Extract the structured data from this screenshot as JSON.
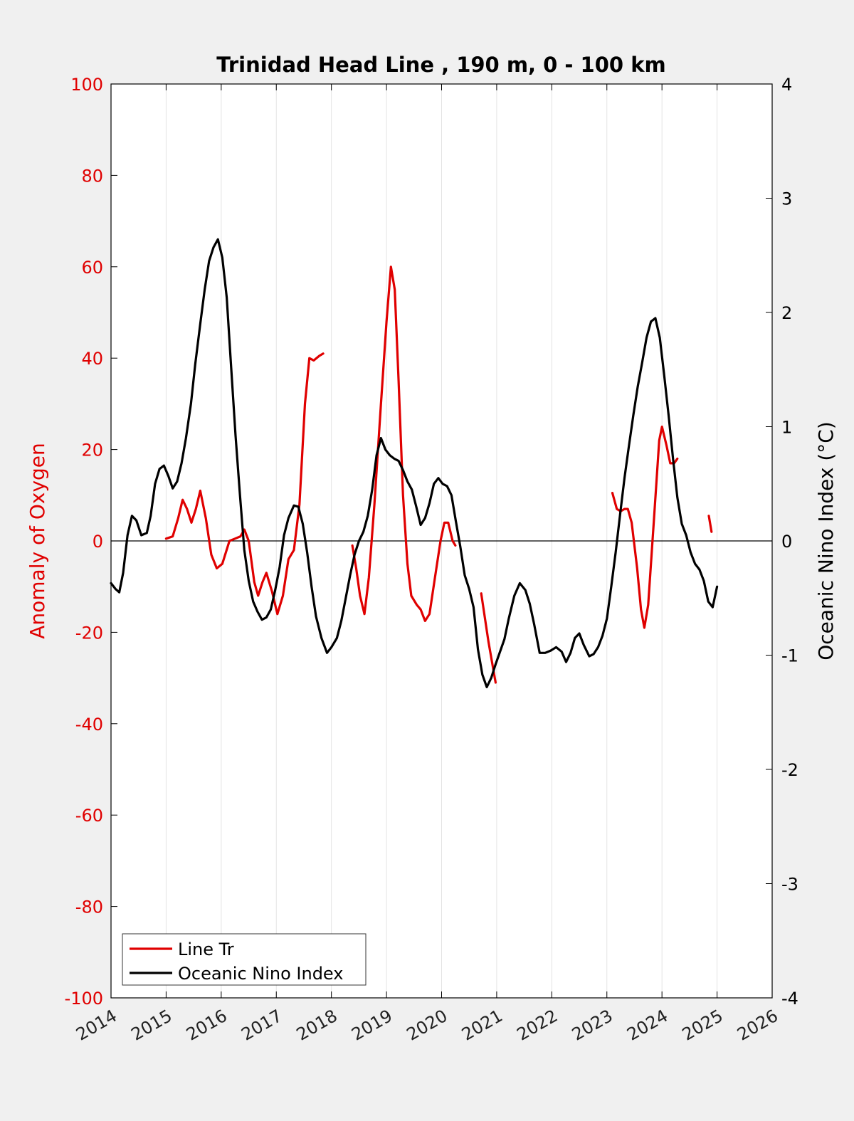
{
  "chart_data": {
    "type": "line",
    "title": "Trinidad Head Line , 190 m, 0 - 100 km",
    "ylabel_left": "Anomaly of Oxygen",
    "ylabel_right": "Oceanic Nino Index (°C)",
    "xlim": [
      2014,
      2026
    ],
    "ylim_left": [
      -100,
      100
    ],
    "ylim_right": [
      -4,
      4
    ],
    "x_ticks": [
      "2014",
      "2015",
      "2016",
      "2017",
      "2018",
      "2019",
      "2020",
      "2021",
      "2022",
      "2023",
      "2024",
      "2025",
      "2026"
    ],
    "y_left_ticks": [
      "100",
      "80",
      "60",
      "40",
      "20",
      "0",
      "-20",
      "-40",
      "-60",
      "-80",
      "-100"
    ],
    "y_right_ticks": [
      "4",
      "3",
      "2",
      "1",
      "0",
      "-1",
      "-2",
      "-3",
      "-4"
    ],
    "grid": "vertical",
    "legend_position": "bottom-left",
    "colors": {
      "line_tr": "#e00000",
      "oni": "#000000",
      "zero_line": "#000000"
    },
    "series": [
      {
        "name": "Line Tr",
        "axis": "left",
        "color": "#e00000",
        "segments": [
          [
            [
              2015.0,
              0.5
            ],
            [
              2015.12,
              1
            ],
            [
              2015.22,
              5
            ],
            [
              2015.3,
              9
            ],
            [
              2015.38,
              7
            ],
            [
              2015.46,
              4
            ],
            [
              2015.54,
              7
            ],
            [
              2015.62,
              11
            ],
            [
              2015.72,
              5
            ],
            [
              2015.82,
              -3
            ],
            [
              2015.92,
              -6
            ],
            [
              2016.02,
              -5
            ],
            [
              2016.15,
              0
            ],
            [
              2016.25,
              0.5
            ],
            [
              2016.35,
              1
            ],
            [
              2016.42,
              2.5
            ],
            [
              2016.5,
              0
            ],
            [
              2016.6,
              -9
            ],
            [
              2016.67,
              -12
            ],
            [
              2016.75,
              -9
            ],
            [
              2016.82,
              -7
            ],
            [
              2016.92,
              -11
            ],
            [
              2017.02,
              -16
            ],
            [
              2017.12,
              -12
            ],
            [
              2017.22,
              -4
            ],
            [
              2017.32,
              -2
            ],
            [
              2017.42,
              8
            ],
            [
              2017.52,
              30
            ],
            [
              2017.6,
              40
            ],
            [
              2017.68,
              39.5
            ],
            [
              2017.78,
              40.5
            ],
            [
              2017.85,
              41
            ]
          ],
          [
            [
              2018.38,
              -1
            ],
            [
              2018.45,
              -6
            ],
            [
              2018.52,
              -12
            ],
            [
              2018.6,
              -16
            ],
            [
              2018.68,
              -8
            ],
            [
              2018.78,
              8
            ],
            [
              2018.9,
              30
            ],
            [
              2019.0,
              48
            ],
            [
              2019.08,
              60
            ],
            [
              2019.15,
              55
            ],
            [
              2019.22,
              35
            ],
            [
              2019.3,
              10
            ],
            [
              2019.38,
              -5
            ],
            [
              2019.45,
              -12
            ],
            [
              2019.55,
              -14
            ],
            [
              2019.62,
              -15
            ],
            [
              2019.7,
              -17.5
            ],
            [
              2019.78,
              -16
            ],
            [
              2019.88,
              -8
            ],
            [
              2019.98,
              0
            ],
            [
              2020.05,
              4
            ],
            [
              2020.12,
              4
            ],
            [
              2020.2,
              0
            ],
            [
              2020.25,
              -1
            ]
          ],
          [
            [
              2020.72,
              -11.5
            ],
            [
              2020.85,
              -22
            ],
            [
              2020.98,
              -31
            ]
          ],
          [
            [
              2023.1,
              10.5
            ],
            [
              2023.18,
              7
            ],
            [
              2023.25,
              6.5
            ],
            [
              2023.32,
              7
            ],
            [
              2023.38,
              7
            ],
            [
              2023.45,
              4
            ],
            [
              2023.55,
              -6
            ],
            [
              2023.62,
              -15
            ],
            [
              2023.68,
              -19
            ],
            [
              2023.75,
              -14
            ],
            [
              2023.85,
              4
            ],
            [
              2023.95,
              22
            ],
            [
              2024.0,
              25
            ],
            [
              2024.08,
              21
            ],
            [
              2024.15,
              17
            ],
            [
              2024.22,
              17
            ],
            [
              2024.28,
              18
            ]
          ],
          [
            [
              2024.85,
              5.5
            ],
            [
              2024.9,
              2
            ]
          ]
        ]
      },
      {
        "name": "Oceanic Nino Index",
        "axis": "right",
        "color": "#000000",
        "segments": [
          [
            [
              2014.0,
              -0.37
            ],
            [
              2014.08,
              -0.42
            ],
            [
              2014.15,
              -0.45
            ],
            [
              2014.22,
              -0.28
            ],
            [
              2014.3,
              0.05
            ],
            [
              2014.38,
              0.22
            ],
            [
              2014.46,
              0.18
            ],
            [
              2014.55,
              0.05
            ],
            [
              2014.65,
              0.07
            ],
            [
              2014.72,
              0.22
            ],
            [
              2014.8,
              0.5
            ],
            [
              2014.88,
              0.63
            ],
            [
              2014.96,
              0.66
            ],
            [
              2015.04,
              0.57
            ],
            [
              2015.12,
              0.46
            ],
            [
              2015.2,
              0.52
            ],
            [
              2015.28,
              0.68
            ],
            [
              2015.36,
              0.9
            ],
            [
              2015.45,
              1.2
            ],
            [
              2015.53,
              1.55
            ],
            [
              2015.62,
              1.9
            ],
            [
              2015.7,
              2.2
            ],
            [
              2015.78,
              2.45
            ],
            [
              2015.86,
              2.57
            ],
            [
              2015.94,
              2.64
            ],
            [
              2016.02,
              2.48
            ],
            [
              2016.1,
              2.13
            ],
            [
              2016.18,
              1.52
            ],
            [
              2016.26,
              0.92
            ],
            [
              2016.34,
              0.4
            ],
            [
              2016.42,
              -0.08
            ],
            [
              2016.5,
              -0.35
            ],
            [
              2016.58,
              -0.53
            ],
            [
              2016.66,
              -0.62
            ],
            [
              2016.74,
              -0.69
            ],
            [
              2016.82,
              -0.67
            ],
            [
              2016.9,
              -0.6
            ],
            [
              2016.98,
              -0.43
            ],
            [
              2017.06,
              -0.23
            ],
            [
              2017.14,
              0.05
            ],
            [
              2017.22,
              0.2
            ],
            [
              2017.32,
              0.31
            ],
            [
              2017.4,
              0.3
            ],
            [
              2017.48,
              0.15
            ],
            [
              2017.56,
              -0.1
            ],
            [
              2017.64,
              -0.4
            ],
            [
              2017.72,
              -0.66
            ],
            [
              2017.82,
              -0.85
            ],
            [
              2017.92,
              -0.98
            ],
            [
              2018.0,
              -0.93
            ],
            [
              2018.1,
              -0.85
            ],
            [
              2018.18,
              -0.7
            ],
            [
              2018.26,
              -0.5
            ],
            [
              2018.34,
              -0.3
            ],
            [
              2018.42,
              -0.12
            ],
            [
              2018.5,
              0.0
            ],
            [
              2018.58,
              0.08
            ],
            [
              2018.66,
              0.22
            ],
            [
              2018.74,
              0.45
            ],
            [
              2018.82,
              0.75
            ],
            [
              2018.9,
              0.9
            ],
            [
              2018.98,
              0.8
            ],
            [
              2019.06,
              0.75
            ],
            [
              2019.14,
              0.72
            ],
            [
              2019.22,
              0.7
            ],
            [
              2019.3,
              0.62
            ],
            [
              2019.38,
              0.52
            ],
            [
              2019.46,
              0.45
            ],
            [
              2019.54,
              0.3
            ],
            [
              2019.62,
              0.14
            ],
            [
              2019.7,
              0.2
            ],
            [
              2019.78,
              0.33
            ],
            [
              2019.86,
              0.5
            ],
            [
              2019.94,
              0.55
            ],
            [
              2020.02,
              0.5
            ],
            [
              2020.1,
              0.48
            ],
            [
              2020.18,
              0.4
            ],
            [
              2020.26,
              0.17
            ],
            [
              2020.34,
              -0.05
            ],
            [
              2020.42,
              -0.3
            ],
            [
              2020.5,
              -0.42
            ],
            [
              2020.58,
              -0.58
            ],
            [
              2020.66,
              -0.95
            ],
            [
              2020.74,
              -1.17
            ],
            [
              2020.82,
              -1.28
            ],
            [
              2020.9,
              -1.2
            ],
            [
              2020.98,
              -1.08
            ],
            [
              2021.06,
              -0.97
            ],
            [
              2021.14,
              -0.86
            ],
            [
              2021.22,
              -0.68
            ],
            [
              2021.32,
              -0.48
            ],
            [
              2021.42,
              -0.37
            ],
            [
              2021.52,
              -0.43
            ],
            [
              2021.6,
              -0.55
            ],
            [
              2021.68,
              -0.73
            ],
            [
              2021.78,
              -0.98
            ],
            [
              2021.88,
              -0.98
            ],
            [
              2021.98,
              -0.96
            ],
            [
              2022.08,
              -0.93
            ],
            [
              2022.18,
              -0.97
            ],
            [
              2022.26,
              -1.06
            ],
            [
              2022.34,
              -0.98
            ],
            [
              2022.42,
              -0.85
            ],
            [
              2022.5,
              -0.81
            ],
            [
              2022.58,
              -0.91
            ],
            [
              2022.68,
              -1.01
            ],
            [
              2022.76,
              -0.99
            ],
            [
              2022.84,
              -0.93
            ],
            [
              2022.92,
              -0.83
            ],
            [
              2023.0,
              -0.68
            ],
            [
              2023.08,
              -0.4
            ],
            [
              2023.16,
              -0.1
            ],
            [
              2023.24,
              0.23
            ],
            [
              2023.32,
              0.55
            ],
            [
              2023.4,
              0.83
            ],
            [
              2023.48,
              1.1
            ],
            [
              2023.56,
              1.35
            ],
            [
              2023.64,
              1.56
            ],
            [
              2023.72,
              1.78
            ],
            [
              2023.8,
              1.92
            ],
            [
              2023.88,
              1.95
            ],
            [
              2023.96,
              1.78
            ],
            [
              2024.04,
              1.45
            ],
            [
              2024.12,
              1.1
            ],
            [
              2024.2,
              0.72
            ],
            [
              2024.28,
              0.38
            ],
            [
              2024.36,
              0.15
            ],
            [
              2024.44,
              0.05
            ],
            [
              2024.52,
              -0.1
            ],
            [
              2024.6,
              -0.2
            ],
            [
              2024.68,
              -0.25
            ],
            [
              2024.76,
              -0.35
            ],
            [
              2024.84,
              -0.53
            ],
            [
              2024.92,
              -0.58
            ],
            [
              2025.0,
              -0.4
            ]
          ]
        ]
      }
    ]
  }
}
